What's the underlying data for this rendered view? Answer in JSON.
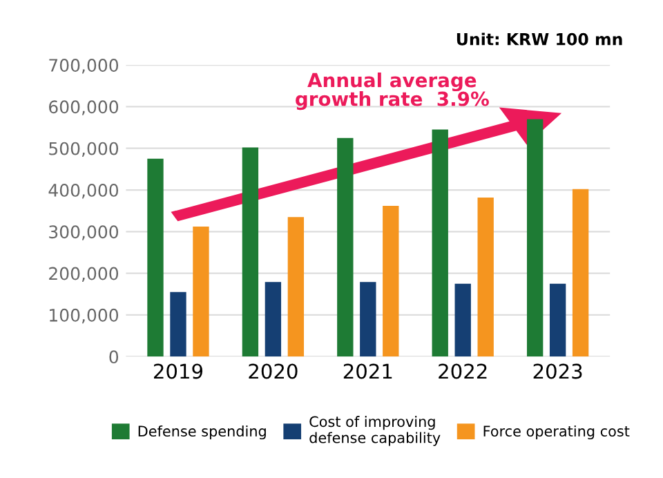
{
  "chart_data": {
    "type": "bar",
    "categories": [
      "2019",
      "2020",
      "2021",
      "2022",
      "2023"
    ],
    "series": [
      {
        "name": "Defense spending",
        "color": "#1e7b34",
        "values": [
          475000,
          502000,
          525000,
          545000,
          570000
        ]
      },
      {
        "name": "Cost of improving\ndefense capability",
        "color": "#153f73",
        "values": [
          155000,
          179000,
          179000,
          175000,
          175000
        ]
      },
      {
        "name": "Force operating cost",
        "color": "#f5951f",
        "values": [
          312000,
          335000,
          362000,
          382000,
          402000
        ]
      }
    ],
    "ylim": [
      0,
      700000
    ],
    "yticks": [
      {
        "value": 0,
        "label": "0"
      },
      {
        "value": 100000,
        "label": "100,000"
      },
      {
        "value": 200000,
        "label": "200,000"
      },
      {
        "value": 300000,
        "label": "300,000"
      },
      {
        "value": 400000,
        "label": "400,000"
      },
      {
        "value": 500000,
        "label": "500,000"
      },
      {
        "value": 600000,
        "label": "600,000"
      },
      {
        "value": 700000,
        "label": "700,000"
      }
    ],
    "grid": "y",
    "legend": "bottom",
    "annotations": [
      "Unit: KRW 100 mn",
      "Annual average\ngrowth rate  3.9%"
    ]
  }
}
